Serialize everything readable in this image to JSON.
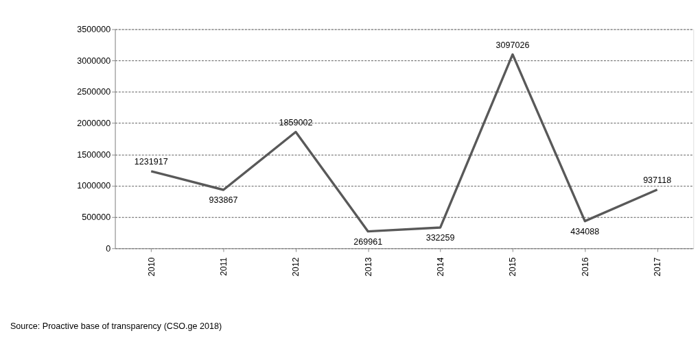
{
  "chart_data": {
    "type": "line",
    "categories": [
      "2010",
      "2011",
      "2012",
      "2013",
      "2014",
      "2015",
      "2016",
      "2017"
    ],
    "series": [
      {
        "color": "#595959",
        "values": [
          1231917,
          933867,
          1859002,
          269961,
          332259,
          3097026,
          434088,
          937118
        ]
      }
    ],
    "ylim": [
      0,
      3500000
    ],
    "yticks": [
      0,
      500000,
      1000000,
      1500000,
      2000000,
      2500000,
      3000000,
      3500000
    ],
    "grid": "y",
    "marker": "none",
    "line_style": "solid",
    "data_labels": true,
    "annotations": [
      "Source: Proactive base of transparency  (CSO.ge 2018)"
    ]
  }
}
